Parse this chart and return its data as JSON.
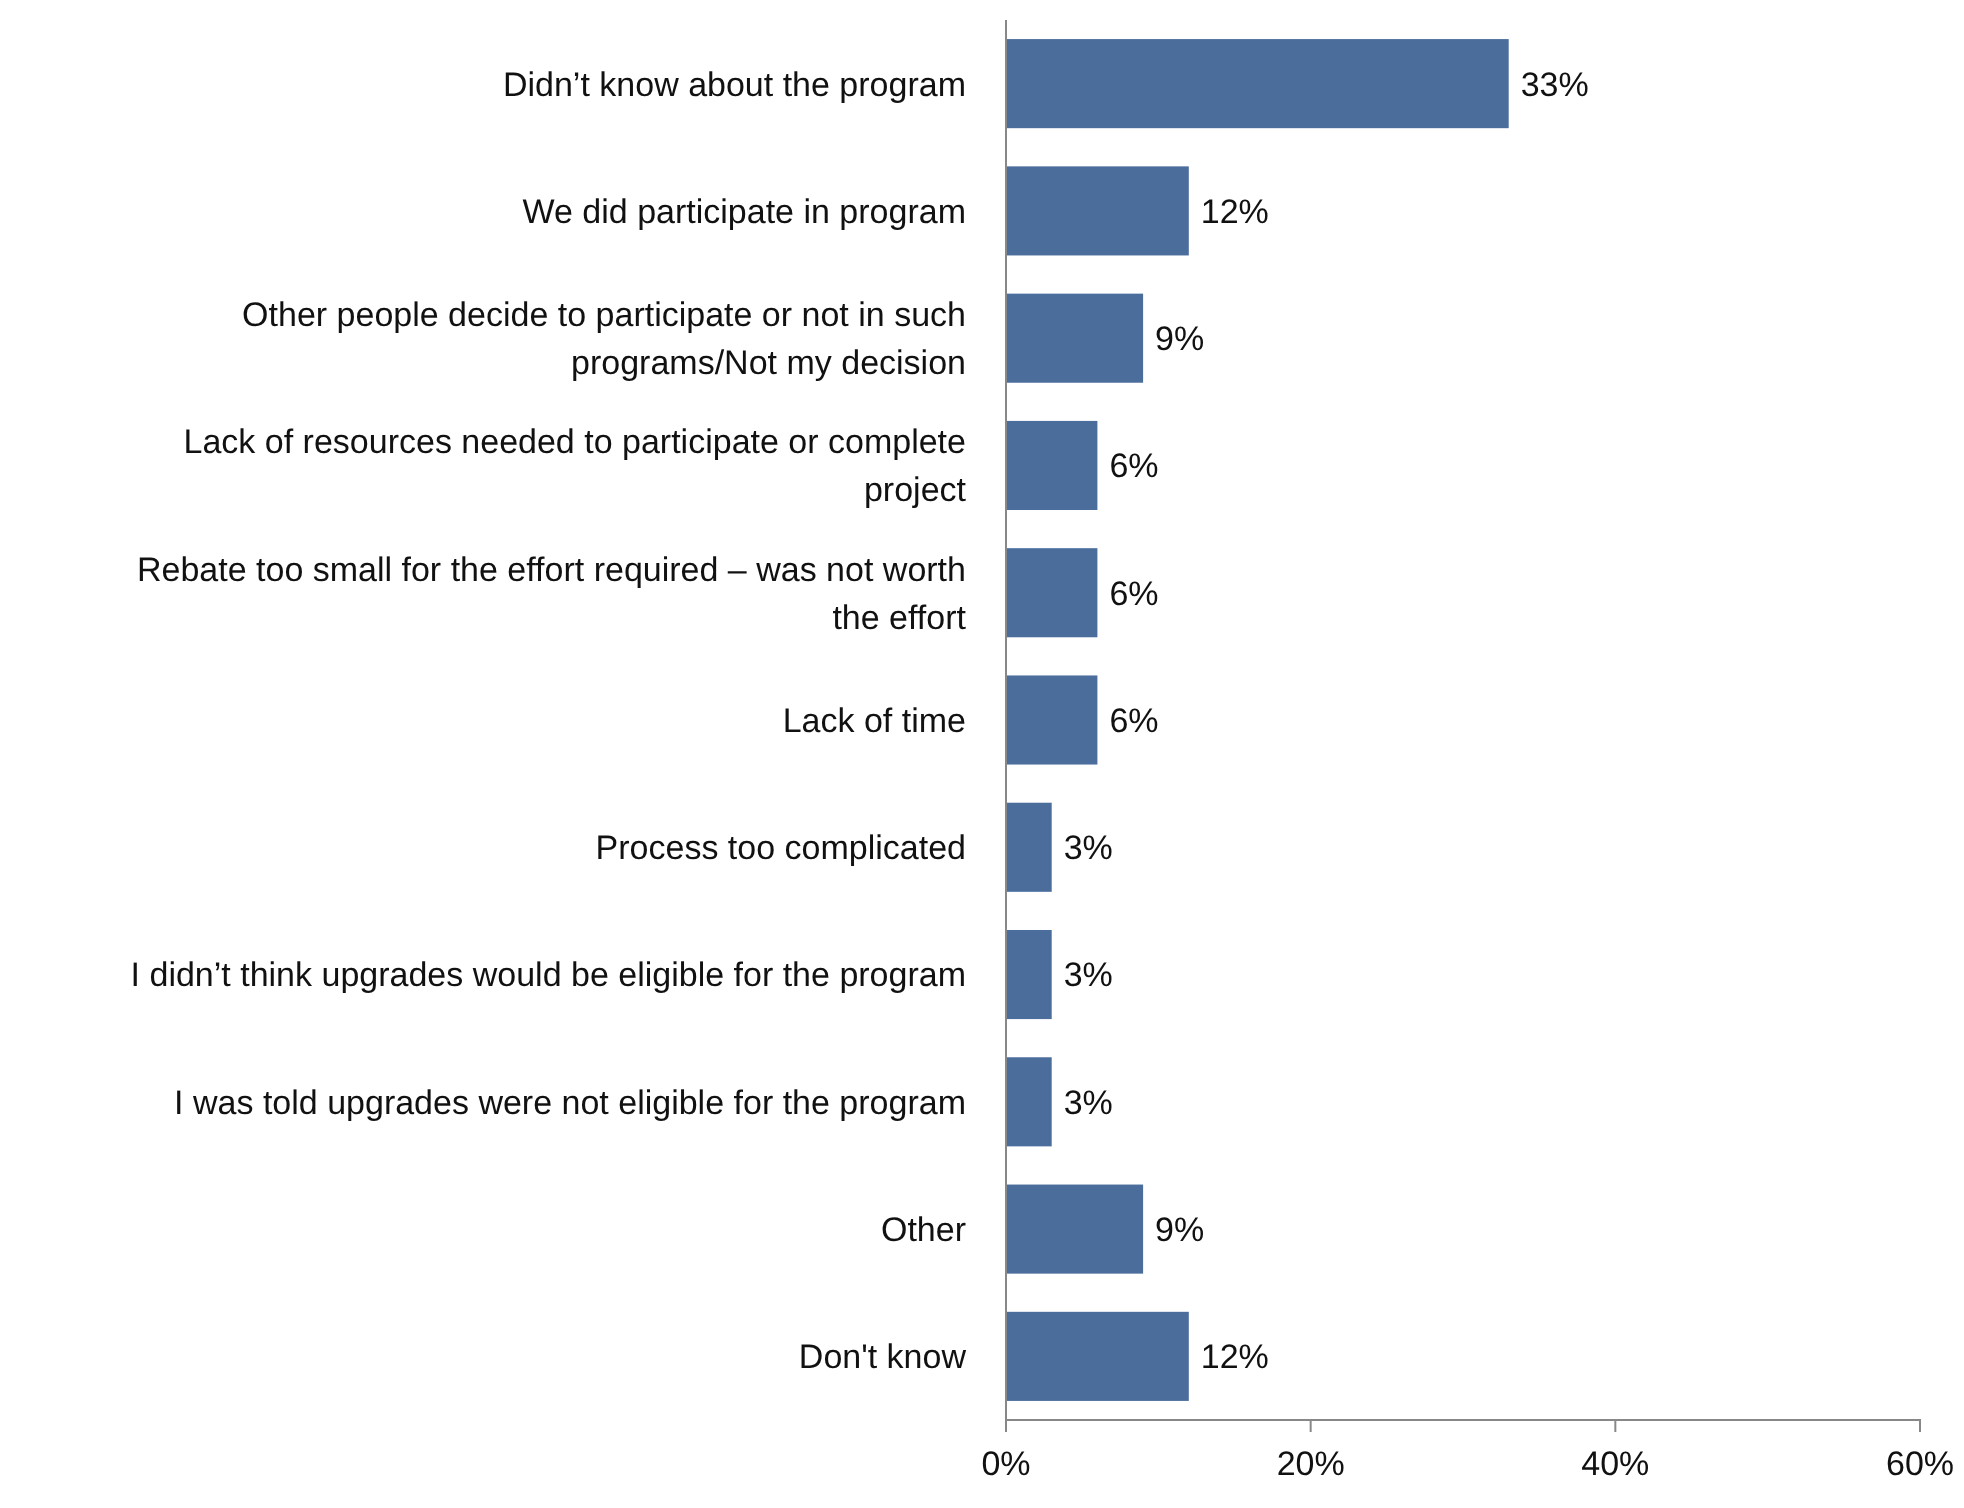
{
  "chart_data": {
    "type": "bar",
    "orientation": "horizontal",
    "categories": [
      "Didn’t know about the program",
      "We did participate in program",
      "Other people decide to participate or not in such programs/Not my decision",
      "Lack of resources needed to participate or complete project",
      "Rebate too small for the effort required – was not worth the effort",
      "Lack of time",
      "Process too complicated",
      "I didn’t think upgrades would be eligible for the program",
      "I was told upgrades were not eligible for the program",
      "Other",
      "Don't know"
    ],
    "values": [
      33,
      12,
      9,
      6,
      6,
      6,
      3,
      3,
      3,
      9,
      12
    ],
    "value_labels": [
      "33%",
      "12%",
      "9%",
      "6%",
      "6%",
      "6%",
      "3%",
      "3%",
      "3%",
      "9%",
      "12%"
    ],
    "color": "#4a6d9c",
    "xlim": [
      0,
      60
    ],
    "xticks": [
      {
        "value": 0,
        "label": "0%"
      },
      {
        "value": 20,
        "label": "20%"
      },
      {
        "value": 40,
        "label": "40%"
      },
      {
        "value": 60,
        "label": "60%"
      }
    ],
    "grid": false
  }
}
